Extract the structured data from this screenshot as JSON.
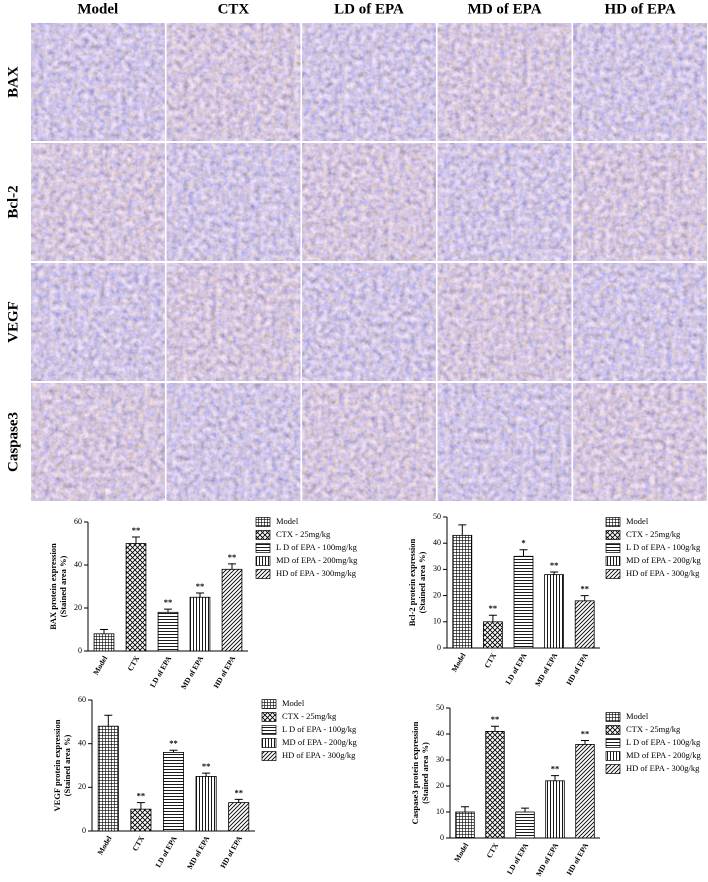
{
  "figure": {
    "columns": [
      "Model",
      "CTX",
      "LD of EPA",
      "MD of EPA",
      "HD of EPA"
    ],
    "rows": [
      "BAX",
      "Bcl-2",
      "VEGF",
      "Caspase3"
    ]
  },
  "chart_data": [
    {
      "type": "bar",
      "ylabel": [
        "BAX protein expression",
        "(Stained area %)"
      ],
      "categories": [
        "Model",
        "CTX",
        "LD of EPA",
        "MD of EPA",
        "HD of EPA"
      ],
      "values": [
        8,
        50,
        18,
        25,
        38
      ],
      "errors": [
        2,
        3,
        1.5,
        2,
        2.5
      ],
      "annotations": [
        null,
        "**",
        "**",
        "**",
        "**"
      ],
      "legend": [
        "Model",
        "CTX - 25mg/kg",
        "L D of EPA - 100mg/kg",
        "MD of EPA - 200mg/kg",
        "HD  of EPA - 300mg/kg"
      ],
      "patterns": [
        "crosshatch",
        "xhatch",
        "horizontal",
        "vertical",
        "diagonal"
      ],
      "ylim": [
        0,
        60
      ],
      "yticks": [
        0,
        20,
        40,
        60
      ]
    },
    {
      "type": "bar",
      "ylabel": [
        "Bcl-2 protein expression",
        "(Stained area %)"
      ],
      "categories": [
        "Model",
        "CTX",
        "LD of EPA",
        "MD of EPA",
        "HD of EPA"
      ],
      "values": [
        43,
        10,
        35,
        28,
        18
      ],
      "errors": [
        4,
        2.5,
        2.5,
        1,
        2
      ],
      "annotations": [
        null,
        "**",
        "*",
        "**",
        "**"
      ],
      "legend": [
        "Model",
        "CTX - 25mg/kg",
        "L D of EPA - 100g/kg",
        "MD of EPA - 200g/kg",
        "HD  of EPA - 300g/kg"
      ],
      "patterns": [
        "crosshatch",
        "xhatch",
        "horizontal",
        "vertical",
        "diagonal"
      ],
      "ylim": [
        0,
        50
      ],
      "yticks": [
        0,
        10,
        20,
        30,
        40,
        50
      ]
    },
    {
      "type": "bar",
      "ylabel": [
        "VEGF protein expression",
        "(Stained area %)"
      ],
      "categories": [
        "Model",
        "CTX",
        "LD of EPA",
        "MD of EPA",
        "HD of EPA"
      ],
      "values": [
        48,
        10,
        36,
        25,
        13
      ],
      "errors": [
        5,
        3,
        1,
        1.5,
        1.5
      ],
      "annotations": [
        null,
        "**",
        "**",
        "**",
        "**"
      ],
      "legend": [
        "Model",
        "CTX - 25mg/kg",
        "L D of EPA - 100g/kg",
        "MD of EPA - 200g/kg",
        "HD  of EPA - 300g/kg"
      ],
      "patterns": [
        "crosshatch",
        "xhatch",
        "horizontal",
        "vertical",
        "diagonal"
      ],
      "ylim": [
        0,
        60
      ],
      "yticks": [
        0,
        20,
        40,
        60
      ]
    },
    {
      "type": "bar",
      "ylabel": [
        "Caspase3 protein expression",
        "(Stained area %)"
      ],
      "categories": [
        "Model",
        "CTX",
        "LD of EPA",
        "MD of EPA",
        "HD of EPA"
      ],
      "values": [
        10,
        41,
        10,
        22,
        36
      ],
      "errors": [
        2,
        2,
        1.5,
        2,
        1.5
      ],
      "annotations": [
        null,
        "**",
        null,
        "**",
        "**"
      ],
      "legend": [
        "Model",
        "CTX - 25mg/kg",
        "L D of EPA - 100g/kg",
        "MD of EPA - 200g/kg",
        "HD  of EPA - 300g/kg"
      ],
      "patterns": [
        "crosshatch",
        "xhatch",
        "horizontal",
        "vertical",
        "diagonal"
      ],
      "ylim": [
        0,
        50
      ],
      "yticks": [
        0,
        10,
        20,
        30,
        40,
        50
      ]
    }
  ]
}
